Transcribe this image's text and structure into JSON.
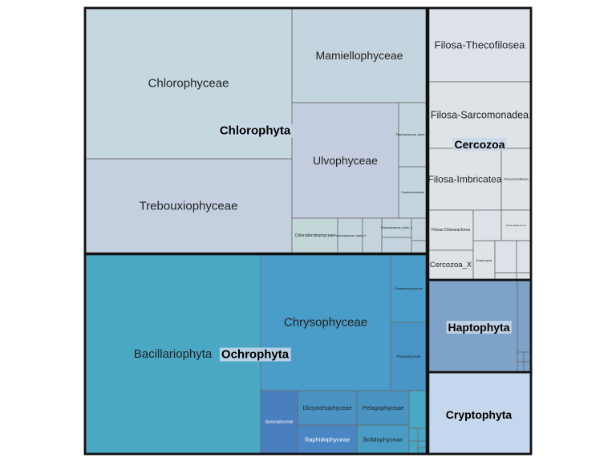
{
  "chart_data": {
    "type": "treemap",
    "groups": [
      {
        "name": "Chlorophyta",
        "color": "#c5d3df",
        "items": [
          {
            "name": "Chlorophyceae",
            "color": "#c5d8e0"
          },
          {
            "name": "Trebouxiophyceae",
            "color": "#c4cfe0"
          },
          {
            "name": "Mamiellophyceae",
            "color": "#c4d4de"
          },
          {
            "name": "Ulvophyceae",
            "color": "#c4cde0"
          },
          {
            "name": "Prasinophyceae_clade_VII",
            "color": "#c4d5dd"
          },
          {
            "name": "Pyramimonadales",
            "color": "#c4d5dd"
          },
          {
            "name": "Chlorodendrophyceae",
            "color": "#c4d7d8"
          },
          {
            "name": "Prasinophyceae_clade_II",
            "color": "#c4d5dd"
          },
          {
            "name": "Prasinophyceae_clade_V",
            "color": "#c4d5dd"
          }
        ]
      },
      {
        "name": "Cercozoa",
        "color": "#dde2e8",
        "items": [
          {
            "name": "Filosa-Thecofilosea",
            "color": "#dde1ea"
          },
          {
            "name": "Filosa-Sarcomonadea",
            "color": "#dde3e6"
          },
          {
            "name": "Filosa-Imbricatea",
            "color": "#dde3e6"
          },
          {
            "name": "Filosa-Granofilosea",
            "color": "#dde3e6"
          },
          {
            "name": "Filosa-Chlorarachnea",
            "color": "#dde3e6"
          },
          {
            "name": "Novel-clade-10-12",
            "color": "#dde3e6"
          },
          {
            "name": "Cercozoa_X",
            "color": "#dde3e6"
          },
          {
            "name": "Endomyxa",
            "color": "#dde3e6"
          }
        ]
      },
      {
        "name": "Ochrophyta",
        "color": "#49a7c5",
        "items": [
          {
            "name": "Bacillariophyta",
            "color": "#4aa8c5"
          },
          {
            "name": "Chrysophyceae",
            "color": "#4a9dc8"
          },
          {
            "name": "Eustigmatophyceae",
            "color": "#4a9ccb"
          },
          {
            "name": "Phaeophyceae",
            "color": "#4a95c8"
          },
          {
            "name": "Synurophyceae",
            "color": "#4a7fbf"
          },
          {
            "name": "Dictyochophyceae",
            "color": "#4a93c2"
          },
          {
            "name": "Pelagophyceae",
            "color": "#4a94c2"
          },
          {
            "name": "Raphidophyceae",
            "color": "#4a85c4"
          },
          {
            "name": "Bolidophyceae",
            "color": "#4a9cc5"
          }
        ]
      },
      {
        "name": "Haptophyta",
        "color": "#7da2c8",
        "items": [
          {
            "name": "Haptophyta",
            "color": "#7ea3c9"
          }
        ]
      },
      {
        "name": "Cryptophyta",
        "color": "#c3d8ee",
        "items": [
          {
            "name": "Cryptophyta",
            "color": "#c3d8ee"
          }
        ]
      }
    ]
  }
}
